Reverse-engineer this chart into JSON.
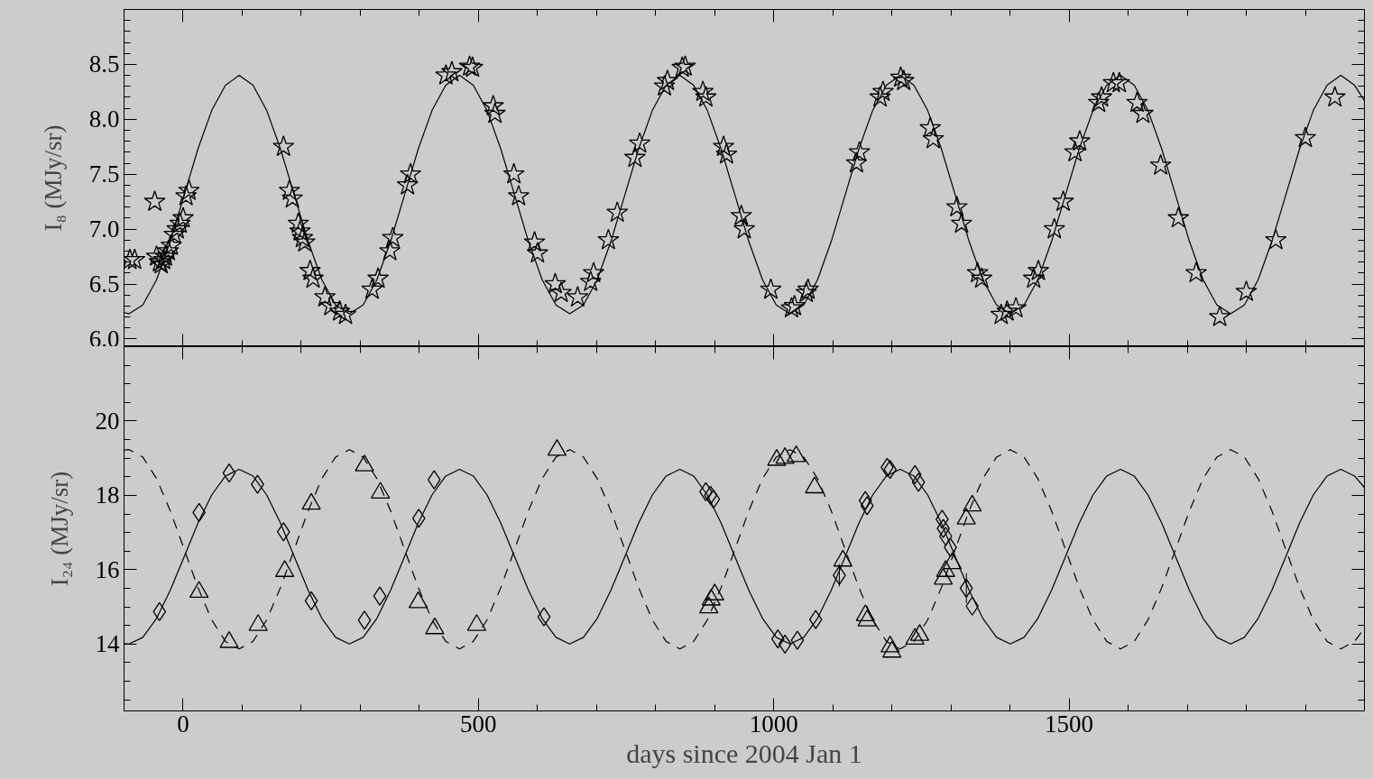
{
  "chart_data": [
    {
      "type": "scatter",
      "ylabel": "I₈ (MJy/sr)",
      "xlim": [
        -100,
        2000
      ],
      "xticks": [
        0,
        500,
        1000,
        1500
      ],
      "ylim": [
        5.93,
        9.0
      ],
      "yticks": [
        {
          "value": 6,
          "label": "6.0"
        },
        6.5,
        {
          "value": 7,
          "label": "7.0"
        },
        7.5,
        {
          "value": 8,
          "label": "8.0"
        },
        8.5
      ],
      "tick_labels": "y",
      "series": [
        {
          "type": "scatter",
          "marker": "star",
          "color": "#000000",
          "x": [
            -90,
            -82,
            -48,
            -45,
            -40,
            -37,
            -33,
            -30,
            -25,
            -20,
            -15,
            -10,
            -5,
            0,
            5,
            10,
            170,
            180,
            185,
            195,
            198,
            202,
            206,
            215,
            220,
            240,
            250,
            265,
            275,
            320,
            330,
            350,
            355,
            380,
            385,
            445,
            455,
            485,
            490,
            525,
            528,
            560,
            568,
            595,
            600,
            630,
            640,
            668,
            690,
            695,
            720,
            735,
            765,
            773,
            815,
            820,
            845,
            850,
            880,
            885,
            915,
            920,
            945,
            950,
            995,
            1030,
            1035,
            1055,
            1058,
            1140,
            1145,
            1180,
            1185,
            1215,
            1220,
            1265,
            1270,
            1310,
            1318,
            1345,
            1352,
            1385,
            1395,
            1410,
            1440,
            1448,
            1475,
            1490,
            1510,
            1518,
            1550,
            1555,
            1575,
            1585,
            1615,
            1625,
            1655,
            1685,
            1715,
            1755,
            1800,
            1850,
            1900,
            1950
          ],
          "values": [
            6.72,
            6.72,
            7.25,
            6.75,
            6.7,
            6.68,
            6.72,
            6.75,
            6.8,
            6.85,
            6.95,
            7.0,
            7.05,
            7.1,
            7.3,
            7.35,
            7.75,
            7.35,
            7.28,
            7.05,
            6.98,
            6.92,
            6.88,
            6.62,
            6.55,
            6.38,
            6.3,
            6.25,
            6.22,
            6.45,
            6.55,
            6.8,
            6.92,
            7.4,
            7.5,
            8.4,
            8.43,
            8.48,
            8.47,
            8.12,
            8.05,
            7.5,
            7.3,
            6.88,
            6.78,
            6.5,
            6.42,
            6.38,
            6.52,
            6.6,
            6.9,
            7.15,
            7.65,
            7.78,
            8.3,
            8.35,
            8.47,
            8.48,
            8.25,
            8.2,
            7.75,
            7.68,
            7.12,
            7.0,
            6.45,
            6.28,
            6.3,
            6.42,
            6.45,
            7.6,
            7.7,
            8.2,
            8.25,
            8.38,
            8.35,
            7.92,
            7.82,
            7.2,
            7.05,
            6.6,
            6.55,
            6.22,
            6.25,
            6.28,
            6.55,
            6.62,
            7.0,
            7.25,
            7.7,
            7.8,
            8.15,
            8.2,
            8.33,
            8.33,
            8.15,
            8.05,
            7.58,
            7.1,
            6.6,
            6.2,
            6.43,
            6.9,
            7.83,
            8.2
          ]
        },
        {
          "type": "line",
          "line_style": "solid",
          "color": "#000000",
          "x": [
            -100,
            -91.5,
            -68.2,
            -44.9,
            -21.6,
            1.8,
            25.1,
            48.4,
            71.7,
            95.0,
            118.3,
            141.6,
            164.9,
            188.3,
            211.6,
            234.9,
            258.2,
            281.5,
            304.8,
            328.1,
            351.4,
            374.8,
            398.1,
            421.4,
            444.7,
            468.0,
            491.3,
            514.6,
            537.9,
            561.3,
            584.6,
            607.9,
            631.2,
            654.5,
            677.8,
            701.1,
            724.4,
            747.8,
            771.1,
            794.4,
            817.7,
            841.0,
            864.3,
            887.6,
            910.9,
            934.3,
            957.6,
            980.9,
            1004.2,
            1027.5,
            1050.8,
            1074.1,
            1097.4,
            1120.8,
            1144.1,
            1167.4,
            1190.7,
            1214.0,
            1237.3,
            1260.6,
            1283.9,
            1307.3,
            1330.6,
            1353.9,
            1377.2,
            1400.5,
            1423.8,
            1447.1,
            1470.4,
            1493.8,
            1517.1,
            1540.4,
            1563.7,
            1587.0,
            1610.3,
            1633.6,
            1656.9,
            1680.3,
            1703.6,
            1726.9,
            1750.2,
            1773.5,
            1796.8,
            1820.1,
            1843.4,
            1866.8,
            1890.1,
            1913.4,
            1936.7,
            1960.0,
            1983.3,
            2000
          ],
          "values": [
            6.24,
            6.23,
            6.31,
            6.54,
            6.89,
            7.31,
            7.73,
            8.08,
            8.31,
            8.4,
            8.31,
            8.08,
            7.73,
            7.31,
            6.89,
            6.54,
            6.31,
            6.23,
            6.31,
            6.54,
            6.89,
            7.31,
            7.73,
            8.08,
            8.31,
            8.4,
            8.31,
            8.08,
            7.73,
            7.31,
            6.89,
            6.54,
            6.31,
            6.23,
            6.31,
            6.54,
            6.89,
            7.31,
            7.73,
            8.08,
            8.31,
            8.4,
            8.31,
            8.08,
            7.73,
            7.31,
            6.89,
            6.54,
            6.31,
            6.23,
            6.31,
            6.54,
            6.89,
            7.31,
            7.73,
            8.08,
            8.31,
            8.4,
            8.31,
            8.08,
            7.73,
            7.31,
            6.89,
            6.54,
            6.31,
            6.23,
            6.31,
            6.54,
            6.89,
            7.31,
            7.73,
            8.08,
            8.31,
            8.4,
            8.31,
            8.08,
            7.73,
            7.31,
            6.89,
            6.54,
            6.31,
            6.23,
            6.31,
            6.54,
            6.89,
            7.31,
            7.73,
            8.08,
            8.31,
            8.4,
            8.31,
            8.17
          ]
        }
      ]
    },
    {
      "type": "scatter",
      "xlabel": "days since 2004 Jan 1",
      "ylabel": "I₂₄ (MJy/sr)",
      "xlim": [
        -100,
        2000
      ],
      "xticks": [
        0,
        500,
        1000,
        1500
      ],
      "ylim": [
        12.2,
        22
      ],
      "yticks": [
        14,
        16,
        18,
        20
      ],
      "series": [
        {
          "type": "scatter",
          "marker": "diamond",
          "color": "#000000",
          "x": [
            -40,
            27,
            78,
            126,
            170,
            217,
            307,
            333,
            399,
            425,
            611,
            885,
            893,
            898,
            1007,
            1019,
            1040,
            1071,
            1111,
            1155,
            1158,
            1192,
            1197,
            1239,
            1245,
            1285,
            1287,
            1291,
            1299,
            1326,
            1336
          ],
          "values": [
            14.87,
            17.54,
            18.6,
            18.3,
            17.02,
            15.16,
            14.64,
            15.29,
            17.38,
            18.42,
            14.73,
            18.1,
            18.0,
            17.9,
            14.14,
            14.0,
            14.1,
            14.66,
            15.85,
            17.86,
            17.72,
            18.75,
            18.7,
            18.56,
            18.35,
            17.36,
            17.11,
            16.9,
            16.6,
            15.5,
            15.02
          ],
          "errors": [
            null,
            null,
            null,
            null,
            null,
            null,
            null,
            null,
            null,
            null,
            null,
            null,
            null,
            null,
            null,
            null,
            null,
            null,
            0.3,
            null,
            null,
            null,
            null,
            null,
            null,
            null,
            null,
            null,
            null,
            0.4,
            null
          ]
        },
        {
          "type": "scatter",
          "marker": "triangle",
          "color": "#000000",
          "x": [
            27,
            78,
            127,
            172,
            217,
            307,
            334,
            398,
            426,
            497,
            633,
            890,
            894,
            900,
            1005,
            1019,
            1038,
            1069,
            1117,
            1155,
            1158,
            1197,
            1200,
            1239,
            1247,
            1287,
            1291,
            1302,
            1326,
            1336
          ],
          "values": [
            15.4,
            14.05,
            14.51,
            15.96,
            17.77,
            18.8,
            18.07,
            15.12,
            14.42,
            14.51,
            19.22,
            14.98,
            15.19,
            15.33,
            18.95,
            19.0,
            19.05,
            18.21,
            16.24,
            14.77,
            14.63,
            13.93,
            13.79,
            14.14,
            14.24,
            15.75,
            15.96,
            16.17,
            17.37,
            17.72
          ]
        },
        {
          "type": "line",
          "line_style": "solid",
          "color": "#000000",
          "x": [
            -100,
            -91.5,
            -68.2,
            -44.9,
            -21.6,
            1.8,
            25.1,
            48.4,
            71.7,
            95.0,
            118.3,
            141.6,
            164.9,
            188.3,
            211.6,
            234.9,
            258.2,
            281.5,
            304.8,
            328.1,
            351.4,
            374.8,
            398.1,
            421.4,
            444.7,
            468.0,
            491.3,
            514.6,
            537.9,
            561.3,
            584.6,
            607.9,
            631.2,
            654.5,
            677.8,
            701.1,
            724.4,
            747.8,
            771.1,
            794.4,
            817.7,
            841.0,
            864.3,
            887.6,
            910.9,
            934.3,
            957.6,
            980.9,
            1004.2,
            1027.5,
            1050.8,
            1074.1,
            1097.4,
            1120.8,
            1144.1,
            1167.4,
            1190.7,
            1214.0,
            1237.3,
            1260.6,
            1283.9,
            1307.3,
            1330.6,
            1353.9,
            1377.2,
            1400.5,
            1423.8,
            1447.1,
            1470.4,
            1493.8,
            1517.1,
            1540.4,
            1563.7,
            1587.0,
            1610.3,
            1633.6,
            1656.9,
            1680.3,
            1703.6,
            1726.9,
            1750.2,
            1773.5,
            1796.8,
            1820.1,
            1843.4,
            1866.8,
            1890.1,
            1913.4,
            1936.7,
            1960.0,
            1983.3,
            2000
          ],
          "values": [
            14.01,
            14.0,
            14.18,
            14.69,
            15.45,
            16.35,
            17.25,
            18.01,
            18.52,
            18.7,
            18.52,
            18.01,
            17.25,
            16.35,
            15.45,
            14.69,
            14.18,
            14.0,
            14.18,
            14.69,
            15.45,
            16.35,
            17.25,
            18.01,
            18.52,
            18.7,
            18.52,
            18.01,
            17.25,
            16.35,
            15.45,
            14.69,
            14.18,
            14.0,
            14.18,
            14.69,
            15.45,
            16.35,
            17.25,
            18.01,
            18.52,
            18.7,
            18.52,
            18.01,
            17.25,
            16.35,
            15.45,
            14.69,
            14.18,
            14.0,
            14.18,
            14.69,
            15.45,
            16.35,
            17.25,
            18.01,
            18.52,
            18.7,
            18.52,
            18.01,
            17.25,
            16.35,
            15.45,
            14.69,
            14.18,
            14.0,
            14.18,
            14.69,
            15.45,
            16.35,
            17.25,
            18.01,
            18.52,
            18.7,
            18.52,
            18.01,
            17.25,
            16.35,
            15.45,
            14.69,
            14.18,
            14.0,
            14.18,
            14.69,
            15.45,
            16.35,
            17.25,
            18.01,
            18.52,
            18.7,
            18.52,
            18.21
          ]
        },
        {
          "type": "line",
          "line_style": "dashed",
          "color": "#000000",
          "x": [
            -100,
            -91.5,
            -68.2,
            -44.9,
            -21.6,
            1.8,
            25.1,
            48.4,
            71.7,
            95.0,
            118.3,
            141.6,
            164.9,
            188.3,
            211.6,
            234.9,
            258.2,
            281.5,
            304.8,
            328.1,
            351.4,
            374.8,
            398.1,
            421.4,
            444.7,
            468.0,
            491.3,
            514.6,
            537.9,
            561.3,
            584.6,
            607.9,
            631.2,
            654.5,
            677.8,
            701.1,
            724.4,
            747.8,
            771.1,
            794.4,
            817.7,
            841.0,
            864.3,
            887.6,
            910.9,
            934.3,
            957.6,
            980.9,
            1004.2,
            1027.5,
            1050.8,
            1074.1,
            1097.4,
            1120.8,
            1144.1,
            1167.4,
            1190.7,
            1214.0,
            1237.3,
            1260.6,
            1283.9,
            1307.3,
            1330.6,
            1353.9,
            1377.2,
            1400.5,
            1423.8,
            1447.1,
            1470.4,
            1493.8,
            1517.1,
            1540.4,
            1563.7,
            1587.0,
            1610.3,
            1633.6,
            1656.9,
            1680.3,
            1703.6,
            1726.9,
            1750.2,
            1773.5,
            1796.8,
            1820.1,
            1843.4,
            1866.8,
            1890.1,
            1913.4,
            1936.7,
            1960.0,
            1983.3,
            2000
          ],
          "values": [
            19.22,
            19.23,
            19.03,
            18.45,
            17.58,
            16.55,
            15.52,
            14.65,
            14.07,
            13.87,
            14.07,
            14.65,
            15.52,
            16.55,
            17.58,
            18.45,
            19.03,
            19.23,
            19.03,
            18.45,
            17.58,
            16.55,
            15.52,
            14.65,
            14.07,
            13.87,
            14.07,
            14.65,
            15.52,
            16.55,
            17.58,
            18.45,
            19.03,
            19.23,
            19.03,
            18.45,
            17.58,
            16.55,
            15.52,
            14.65,
            14.07,
            13.87,
            14.07,
            14.65,
            15.52,
            16.55,
            17.58,
            18.45,
            19.03,
            19.23,
            19.03,
            18.45,
            17.58,
            16.55,
            15.52,
            14.65,
            14.07,
            13.87,
            14.07,
            14.65,
            15.52,
            16.55,
            17.58,
            18.45,
            19.03,
            19.23,
            19.03,
            18.45,
            17.58,
            16.55,
            15.52,
            14.65,
            14.07,
            13.87,
            14.07,
            14.65,
            15.52,
            16.55,
            17.58,
            18.45,
            19.03,
            19.23,
            19.03,
            18.45,
            17.58,
            16.55,
            15.52,
            14.65,
            14.07,
            13.87,
            14.07,
            14.43
          ]
        }
      ]
    }
  ]
}
